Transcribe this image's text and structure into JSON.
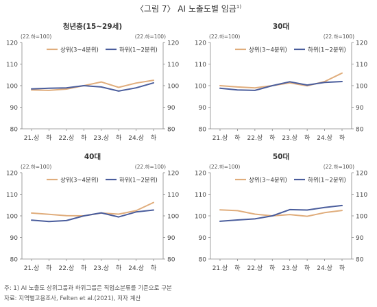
{
  "figure": {
    "title": "〈그림 7〉 AI 노출도별 임금",
    "title_sup": "1)"
  },
  "notes": {
    "note1": "주: 1) AI 노출도 상위그룹과 하위그룹은 직업소분류를 기준으로 구분",
    "source": "자료: 지역별고용조사, Felten et al.(2021), 저자 계산"
  },
  "colors": {
    "upper": "#e0ad7c",
    "lower": "#4a5d9c",
    "axis": "#888888",
    "grid": "#dddddd"
  },
  "chart_data": [
    {
      "type": "line",
      "title": "청년층(15~29세)",
      "unit_left": "(22.하=100)",
      "unit_right": "(22.하=100)",
      "categories": [
        "21.상",
        "하",
        "22.상",
        "하",
        "23.상",
        "하",
        "24.상",
        "하"
      ],
      "ylim": [
        80,
        120
      ],
      "yticks": [
        80,
        90,
        100,
        110,
        120
      ],
      "legend_position": "top",
      "grid": false,
      "series": [
        {
          "name": "상위(3~4분위)",
          "color": "#e0ad7c",
          "values": [
            98.0,
            97.8,
            98.4,
            100.0,
            101.7,
            99.2,
            101.2,
            102.5
          ]
        },
        {
          "name": "하위(1~2분위)",
          "color": "#4a5d9c",
          "values": [
            98.5,
            98.8,
            99.0,
            100.0,
            99.4,
            97.5,
            99.0,
            101.3
          ]
        }
      ]
    },
    {
      "type": "line",
      "title": "30대",
      "unit_left": "(22.하=100)",
      "unit_right": "(22.하=100)",
      "categories": [
        "21.상",
        "하",
        "22.상",
        "하",
        "23.상",
        "하",
        "24.상",
        "하"
      ],
      "ylim": [
        80,
        120
      ],
      "yticks": [
        80,
        90,
        100,
        110,
        120
      ],
      "legend_position": "top",
      "grid": false,
      "series": [
        {
          "name": "상위(3~4분위)",
          "color": "#e0ad7c",
          "values": [
            100.0,
            99.4,
            99.0,
            100.0,
            101.3,
            99.9,
            101.9,
            105.8
          ]
        },
        {
          "name": "하위(1~2분위)",
          "color": "#4a5d9c",
          "values": [
            98.8,
            98.0,
            97.8,
            100.0,
            101.8,
            100.3,
            101.5,
            101.9
          ]
        }
      ]
    },
    {
      "type": "line",
      "title": "40대",
      "unit_left": "(22.하=100)",
      "unit_right": "(22.하=100)",
      "categories": [
        "21.상",
        "하",
        "22.상",
        "하",
        "23.상",
        "하",
        "24.상",
        "하"
      ],
      "ylim": [
        80,
        120
      ],
      "yticks": [
        80,
        90,
        100,
        110,
        120
      ],
      "legend_position": "top",
      "grid": false,
      "series": [
        {
          "name": "상위(3~4분위)",
          "color": "#e0ad7c",
          "values": [
            101.3,
            100.7,
            100.1,
            100.0,
            101.3,
            100.8,
            102.4,
            106.2
          ]
        },
        {
          "name": "하위(1~2분위)",
          "color": "#4a5d9c",
          "values": [
            98.0,
            97.4,
            97.8,
            100.0,
            101.4,
            99.5,
            101.8,
            102.7
          ]
        }
      ]
    },
    {
      "type": "line",
      "title": "50대",
      "unit_left": "(22.하=100)",
      "unit_right": "(22.하=100)",
      "categories": [
        "21.상",
        "하",
        "22.상",
        "하",
        "23.상",
        "하",
        "24.상",
        "하"
      ],
      "ylim": [
        80,
        120
      ],
      "yticks": [
        80,
        90,
        100,
        110,
        120
      ],
      "legend_position": "top",
      "grid": false,
      "series": [
        {
          "name": "상위(3~4분위)",
          "color": "#e0ad7c",
          "values": [
            102.8,
            102.4,
            100.8,
            100.0,
            100.6,
            99.8,
            101.5,
            102.5
          ]
        },
        {
          "name": "하위(1~2분위)",
          "color": "#4a5d9c",
          "values": [
            97.5,
            98.1,
            98.6,
            100.0,
            102.9,
            102.7,
            103.9,
            104.8
          ]
        }
      ]
    }
  ]
}
